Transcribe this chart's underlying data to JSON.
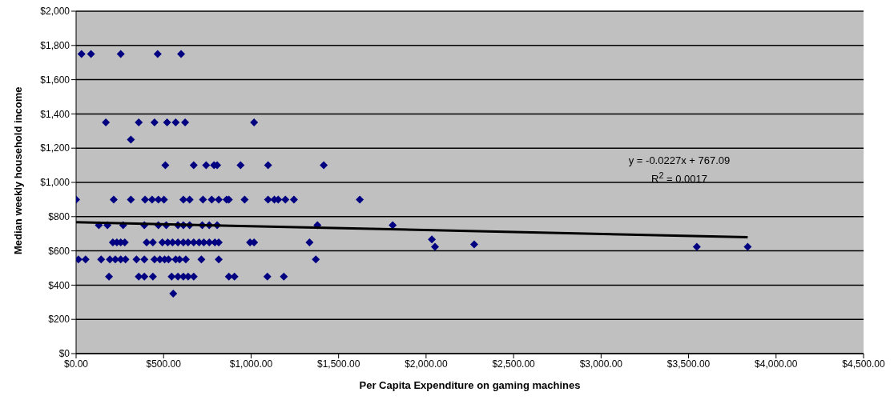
{
  "chart_data": {
    "type": "scatter",
    "xlabel": "Per Capita Expenditure on gaming machines",
    "ylabel": "Median weekly household income",
    "xlim": [
      0,
      4500
    ],
    "xticks": [
      {
        "value": 0,
        "label": "$0.00"
      },
      {
        "value": 500,
        "label": "$500.00"
      },
      {
        "value": 1000,
        "label": "$1,000.00"
      },
      {
        "value": 1500,
        "label": "$1,500.00"
      },
      {
        "value": 2000,
        "label": "$2,000.00"
      },
      {
        "value": 2500,
        "label": "$2,500.00"
      },
      {
        "value": 3000,
        "label": "$3,000.00"
      },
      {
        "value": 3500,
        "label": "$3,500.00"
      },
      {
        "value": 4000,
        "label": "$4,000.00"
      },
      {
        "value": 4500,
        "label": "$4,500.00"
      }
    ],
    "ylim": [
      0,
      2000
    ],
    "yticks": [
      {
        "value": 0,
        "label": "$0"
      },
      {
        "value": 200,
        "label": "$200"
      },
      {
        "value": 400,
        "label": "$400"
      },
      {
        "value": 600,
        "label": "$600"
      },
      {
        "value": 800,
        "label": "$800"
      },
      {
        "value": 1000,
        "label": "$1,000"
      },
      {
        "value": 1200,
        "label": "$1,200"
      },
      {
        "value": 1400,
        "label": "$1,400"
      },
      {
        "value": 1600,
        "label": "$1,600"
      },
      {
        "value": 1800,
        "label": "$1,800"
      },
      {
        "value": 2000,
        "label": "$2,000"
      }
    ],
    "grid": "y",
    "legend": false,
    "marker": "diamond",
    "annotations": [
      "y = -0.0227x + 767.09",
      "R$^{2}$ = 0.0017"
    ],
    "series": [
      {
        "color": "#000080",
        "x": [
          31,
          85,
          255,
          466,
          600,
          170,
          358,
          448,
          520,
          569,
          623,
          1017,
          313,
          510,
          672,
          743,
          788,
          806,
          940,
          1097,
          1415,
          0,
          215,
          313,
          394,
          434,
          470,
          502,
          613,
          649,
          725,
          775,
          815,
          860,
          873,
          963,
          1097,
          1133,
          1155,
          1196,
          1245,
          1621,
          130,
          179,
          269,
          390,
          470,
          515,
          582,
          613,
          649,
          721,
          761,
          806,
          1379,
          1809,
          210,
          233,
          255,
          278,
          403,
          439,
          493,
          524,
          551,
          582,
          613,
          640,
          672,
          703,
          730,
          761,
          793,
          815,
          994,
          1017,
          1334,
          13,
          54,
          143,
          193,
          224,
          255,
          282,
          345,
          390,
          448,
          479,
          506,
          528,
          569,
          591,
          627,
          716,
          815,
          1370,
          188,
          358,
          390,
          439,
          546,
          582,
          613,
          640,
          672,
          873,
          905,
          1093,
          1187,
          555,
          2033,
          2051,
          2275,
          3547,
          3838
        ],
        "values": [
          1750,
          1750,
          1750,
          1750,
          1750,
          1350,
          1350,
          1350,
          1350,
          1350,
          1350,
          1350,
          1250,
          1100,
          1100,
          1100,
          1100,
          1100,
          1100,
          1100,
          1100,
          900,
          900,
          900,
          900,
          900,
          900,
          900,
          900,
          900,
          900,
          900,
          900,
          900,
          900,
          900,
          900,
          900,
          900,
          900,
          900,
          900,
          750,
          750,
          750,
          750,
          750,
          750,
          750,
          750,
          750,
          750,
          750,
          750,
          750,
          750,
          650,
          650,
          650,
          650,
          650,
          650,
          650,
          650,
          650,
          650,
          650,
          650,
          650,
          650,
          650,
          650,
          650,
          650,
          650,
          650,
          650,
          550,
          550,
          550,
          550,
          550,
          550,
          550,
          550,
          550,
          550,
          550,
          550,
          550,
          550,
          550,
          550,
          550,
          550,
          550,
          450,
          450,
          450,
          450,
          450,
          450,
          450,
          450,
          450,
          450,
          450,
          450,
          450,
          350,
          667,
          624,
          638,
          624,
          624
        ]
      },
      {
        "type": "line",
        "marker": "none",
        "color": "#000000",
        "x": [
          0,
          3838
        ],
        "values": [
          767,
          680
        ]
      }
    ]
  }
}
